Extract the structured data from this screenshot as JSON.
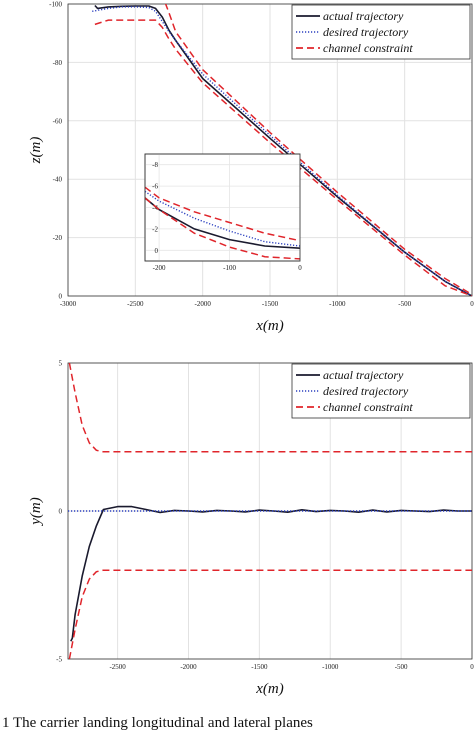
{
  "chart_data": [
    {
      "type": "line",
      "xlabel": "x(m)",
      "ylabel": "z(m)",
      "xlim": [
        -3000,
        0
      ],
      "ylim": [
        0,
        100
      ],
      "y_ticks_reversed_labels": true,
      "xticks": [
        -3000,
        -2500,
        -2000,
        -1500,
        -1000,
        -500,
        0
      ],
      "xtick_labels": [
        "-3000",
        "-2500",
        "-2000",
        "-1500",
        "-1000",
        "-500",
        "0"
      ],
      "yticks": [
        0,
        20,
        40,
        60,
        80,
        100
      ],
      "ytick_labels": [
        "0",
        "-20",
        "-40",
        "-60",
        "-80",
        "-100"
      ],
      "grid": true,
      "legend_position": "top-right",
      "series": [
        {
          "name": "actual trajectory",
          "color": "#1a1a2e",
          "style": "solid",
          "x": [
            -2800,
            -2780,
            -2700,
            -2600,
            -2500,
            -2400,
            -2350,
            -2300,
            -2250,
            -2200,
            -2000,
            -1500,
            -1000,
            -500,
            -200,
            0
          ],
          "y": [
            99.5,
            98.5,
            99,
            99.2,
            99.3,
            99.3,
            98.5,
            95.5,
            91,
            87.5,
            74.5,
            54,
            34,
            15,
            5,
            0
          ]
        },
        {
          "name": "desired trajectory",
          "color": "#2a3fbf",
          "style": "dotted",
          "x": [
            -2820,
            -2700,
            -2600,
            -2500,
            -2400,
            -2350,
            -2300,
            -2250,
            -2200,
            -2000,
            -1500,
            -1000,
            -500,
            -200,
            0
          ],
          "y": [
            97.5,
            98.5,
            99,
            99,
            98.8,
            97.5,
            94,
            90.5,
            87.5,
            76,
            55,
            34.5,
            15,
            5,
            0
          ]
        },
        {
          "name": "channel constraint",
          "color": "#e0252b",
          "style": "dashed",
          "x": [
            -2800,
            -2700,
            -2500,
            -2350,
            -2300,
            -2250,
            -2200,
            -2000,
            -1500,
            -1000,
            -500,
            -200,
            0
          ],
          "y": [
            104,
            104.5,
            104.5,
            104.5,
            103,
            97,
            90.5,
            77.5,
            56,
            35.5,
            16,
            6,
            0.5
          ]
        },
        {
          "name": "channel constraint lower",
          "color": "#e0252b",
          "style": "dashed",
          "x": [
            -2800,
            -2700,
            -2500,
            -2350,
            -2300,
            -2250,
            -2200,
            -2000,
            -1500,
            -1000,
            -500,
            -200,
            0
          ],
          "y": [
            93,
            94.5,
            94.5,
            94.5,
            92,
            88,
            84.5,
            73,
            52.5,
            33,
            14,
            3.5,
            0
          ]
        }
      ],
      "inset": {
        "xlim": [
          -220,
          0
        ],
        "ylim": [
          -1,
          9
        ],
        "xticks": [
          -200,
          -100,
          0
        ],
        "xtick_labels": [
          "-200",
          "-100",
          "0"
        ],
        "yticks": [
          0,
          2,
          4,
          6,
          8
        ],
        "ytick_labels": [
          "0",
          "-2",
          "-4",
          "-6",
          "-8"
        ],
        "series": [
          {
            "ref": "actual trajectory",
            "color": "#1a1a2e",
            "style": "solid",
            "x": [
              -220,
              -200,
              -150,
              -100,
              -50,
              0
            ],
            "y": [
              4.9,
              3.8,
              2.0,
              1.0,
              0.4,
              0.2
            ]
          },
          {
            "ref": "desired trajectory",
            "color": "#2a3fbf",
            "style": "dotted",
            "x": [
              -220,
              -200,
              -150,
              -100,
              -50,
              0
            ],
            "y": [
              5.5,
              4.6,
              3.0,
              1.8,
              0.8,
              0.4
            ]
          },
          {
            "ref": "channel upper",
            "color": "#e0252b",
            "style": "dashed",
            "x": [
              -220,
              -200,
              -150,
              -100,
              -50,
              0
            ],
            "y": [
              5.9,
              4.9,
              3.6,
              2.6,
              1.6,
              0.9
            ]
          },
          {
            "ref": "channel lower",
            "color": "#e0252b",
            "style": "dashed",
            "x": [
              -220,
              -200,
              -150,
              -100,
              -50,
              0
            ],
            "y": [
              4.9,
              3.8,
              1.6,
              0.3,
              -0.6,
              -0.8
            ]
          }
        ]
      }
    },
    {
      "type": "line",
      "xlabel": "x(m)",
      "ylabel": "y(m)",
      "xlim": [
        -2850,
        0
      ],
      "ylim": [
        -5,
        5
      ],
      "xticks": [
        -2500,
        -2000,
        -1500,
        -1000,
        -500,
        0
      ],
      "xtick_labels": [
        "-2500",
        "-2000",
        "-1500",
        "-1000",
        "-500",
        "0"
      ],
      "yticks": [
        -5,
        0,
        5
      ],
      "ytick_labels": [
        "-5",
        "0",
        "5"
      ],
      "grid": true,
      "legend_position": "top-right",
      "series": [
        {
          "name": "actual trajectory",
          "color": "#1a1a2e",
          "style": "solid",
          "x": [
            -2830,
            -2820,
            -2800,
            -2750,
            -2700,
            -2650,
            -2600,
            -2500,
            -2400,
            -2300,
            -2200,
            -2100,
            -2000,
            -1900,
            -1800,
            -1700,
            -1600,
            -1500,
            -1400,
            -1300,
            -1200,
            -1100,
            -1000,
            -900,
            -800,
            -700,
            -600,
            -500,
            -400,
            -300,
            -200,
            -100,
            0
          ],
          "y": [
            -4.4,
            -4.3,
            -3.5,
            -2.2,
            -1.2,
            -0.5,
            0.05,
            0.15,
            0.15,
            0.05,
            -0.05,
            0.02,
            0.0,
            -0.03,
            0.02,
            0.0,
            -0.03,
            0.03,
            0.0,
            -0.04,
            0.04,
            -0.02,
            0.02,
            0.0,
            -0.04,
            0.03,
            -0.03,
            0.02,
            0.0,
            -0.02,
            0.03,
            0.0,
            0.0
          ]
        },
        {
          "name": "desired trajectory",
          "color": "#2a3fbf",
          "style": "dotted",
          "x": [
            -2850,
            0
          ],
          "y": [
            0,
            0
          ]
        },
        {
          "name": "channel constraint",
          "color": "#e0252b",
          "style": "dashed",
          "x": [
            -2840,
            -2800,
            -2750,
            -2700,
            -2650,
            -2600,
            -2500,
            -2000,
            -1000,
            0
          ],
          "y": [
            5.0,
            4.0,
            2.9,
            2.3,
            2.05,
            2.0,
            2.0,
            2.0,
            2.0,
            2.0
          ]
        },
        {
          "name": "channel constraint lower",
          "color": "#e0252b",
          "style": "dashed",
          "x": [
            -2840,
            -2800,
            -2750,
            -2700,
            -2650,
            -2600,
            -2500,
            -2000,
            -1000,
            0
          ],
          "y": [
            -5.0,
            -4.0,
            -2.9,
            -2.3,
            -2.05,
            -2.0,
            -2.0,
            -2.0,
            -2.0,
            -2.0
          ]
        }
      ]
    }
  ],
  "legend": {
    "actual": "actual trajectory",
    "desired": "desired trajectory",
    "channel": "channel constraint"
  },
  "caption": "1    The carrier landing longitudinal and lateral planes"
}
